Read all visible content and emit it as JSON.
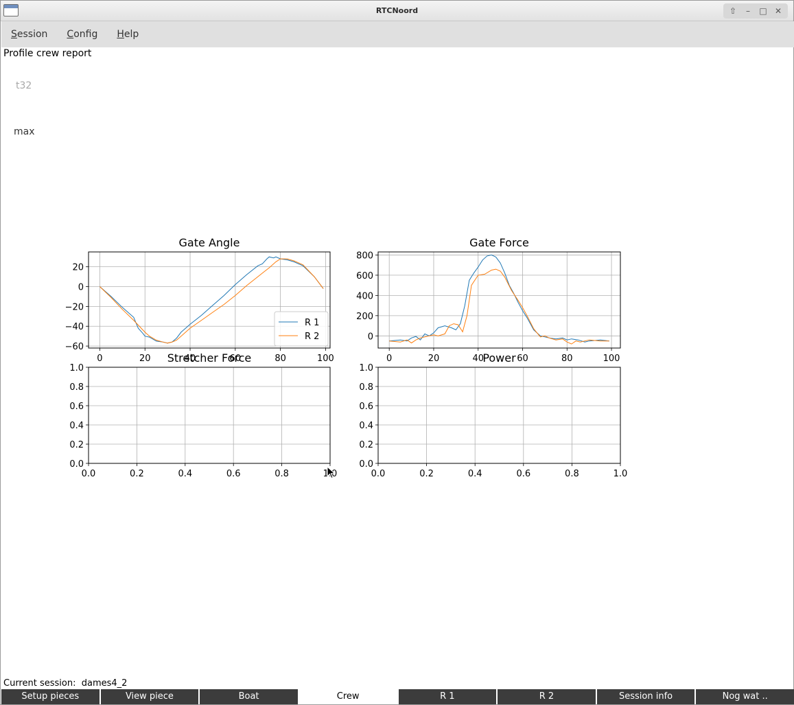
{
  "window": {
    "title": "RTCNoord"
  },
  "menu": {
    "items": [
      "Session",
      "Config",
      "Help"
    ]
  },
  "report": {
    "title": "Profile crew report",
    "t32_label": "t32",
    "max_label": "max"
  },
  "chart_data": [
    {
      "type": "line",
      "title": "Gate Angle",
      "xlim": [
        -5,
        102
      ],
      "ylim": [
        -62,
        35
      ],
      "xticks": [
        0,
        20,
        40,
        60,
        80,
        100
      ],
      "yticks": [
        -60,
        -40,
        -20,
        0,
        20
      ],
      "grid": true,
      "legend": "bottom-right",
      "series": [
        {
          "name": "R 1",
          "color": "#1f77b4",
          "x": [
            0,
            5,
            10,
            15,
            17,
            19,
            20,
            22,
            25,
            28,
            30,
            32,
            34,
            36,
            38,
            40,
            45,
            50,
            55,
            60,
            65,
            70,
            72,
            74,
            75,
            77,
            78,
            80,
            83,
            86,
            90,
            95,
            99
          ],
          "y": [
            0,
            -10,
            -21,
            -31,
            -42,
            -47,
            -50,
            -51,
            -55,
            -56,
            -57,
            -56,
            -52,
            -46,
            -42,
            -38,
            -29,
            -19,
            -9,
            2,
            12,
            21,
            23,
            28,
            30,
            29,
            30,
            28,
            27,
            25,
            21,
            10,
            -2
          ]
        },
        {
          "name": "R 2",
          "color": "#ff7f0e",
          "x": [
            0,
            5,
            10,
            15,
            20,
            22,
            25,
            28,
            30,
            32,
            34,
            36,
            38,
            40,
            45,
            50,
            55,
            60,
            65,
            70,
            75,
            78,
            80,
            83,
            86,
            90,
            95,
            99
          ],
          "y": [
            0,
            -11,
            -23,
            -34,
            -46,
            -50,
            -54,
            -56,
            -57,
            -56,
            -54,
            -50,
            -46,
            -42,
            -34,
            -26,
            -18,
            -9,
            1,
            10,
            19,
            25,
            28,
            28,
            26,
            22,
            10,
            -2
          ]
        }
      ]
    },
    {
      "type": "line",
      "title": "Gate Force",
      "xlim": [
        -5,
        104
      ],
      "ylim": [
        -120,
        830
      ],
      "xticks": [
        0,
        20,
        40,
        60,
        80,
        100
      ],
      "yticks": [
        0,
        200,
        400,
        600,
        800
      ],
      "grid": true,
      "series": [
        {
          "name": "R 1",
          "color": "#1f77b4",
          "x": [
            0,
            5,
            8,
            10,
            12,
            14,
            16,
            18,
            20,
            22,
            25,
            28,
            30,
            32,
            34,
            36,
            38,
            40,
            42,
            44,
            46,
            48,
            50,
            52,
            54,
            56,
            58,
            60,
            62,
            65,
            68,
            70,
            72,
            75,
            78,
            80,
            82,
            85,
            88,
            90,
            95,
            99
          ],
          "y": [
            -50,
            -40,
            -50,
            -20,
            -5,
            -40,
            20,
            0,
            30,
            80,
            100,
            80,
            60,
            120,
            300,
            550,
            620,
            680,
            750,
            790,
            800,
            780,
            720,
            620,
            500,
            420,
            330,
            250,
            180,
            60,
            0,
            -10,
            -20,
            -30,
            -20,
            -40,
            -30,
            -40,
            -60,
            -50,
            -40,
            -50
          ]
        },
        {
          "name": "R 2",
          "color": "#ff7f0e",
          "x": [
            0,
            5,
            8,
            10,
            12,
            14,
            16,
            18,
            20,
            22,
            25,
            27,
            29,
            31,
            33,
            35,
            37,
            40,
            43,
            46,
            48,
            50,
            52,
            55,
            58,
            60,
            62,
            65,
            68,
            70,
            72,
            75,
            78,
            80,
            82,
            84,
            86,
            88,
            90,
            95,
            99
          ],
          "y": [
            -50,
            -60,
            -40,
            -70,
            -40,
            -20,
            -10,
            0,
            10,
            0,
            20,
            100,
            120,
            110,
            40,
            200,
            500,
            600,
            610,
            650,
            660,
            640,
            580,
            450,
            350,
            280,
            200,
            70,
            -10,
            0,
            -20,
            -40,
            -30,
            -60,
            -80,
            -50,
            -60,
            -50,
            -40,
            -50,
            -50
          ]
        }
      ]
    },
    {
      "type": "line",
      "title": "Stretcher Force",
      "xlim": [
        0,
        1
      ],
      "ylim": [
        0,
        1
      ],
      "xticks": [
        0.0,
        0.2,
        0.4,
        0.6,
        0.8,
        1.0
      ],
      "yticks": [
        0.0,
        0.2,
        0.4,
        0.6,
        0.8,
        1.0
      ],
      "grid": true,
      "series": []
    },
    {
      "type": "line",
      "title": "Power",
      "xlim": [
        0,
        1
      ],
      "ylim": [
        0,
        1
      ],
      "xticks": [
        0.0,
        0.2,
        0.4,
        0.6,
        0.8,
        1.0
      ],
      "yticks": [
        0.0,
        0.2,
        0.4,
        0.6,
        0.8,
        1.0
      ],
      "grid": true,
      "series": []
    }
  ],
  "status": {
    "session_prefix": "Current session:",
    "session_name": "dames4_2"
  },
  "tabs": [
    {
      "label": "Setup pieces",
      "active": false
    },
    {
      "label": "View piece",
      "active": false
    },
    {
      "label": "Boat",
      "active": false
    },
    {
      "label": "Crew",
      "active": true
    },
    {
      "label": "R 1",
      "active": false
    },
    {
      "label": "R 2",
      "active": false
    },
    {
      "label": "Session info",
      "active": false
    },
    {
      "label": "Nog wat ..",
      "active": false
    }
  ]
}
